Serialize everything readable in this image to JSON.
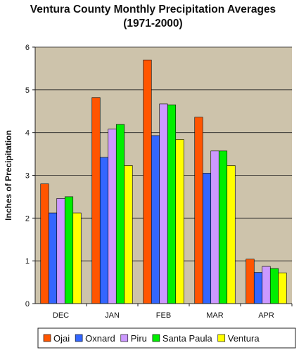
{
  "chart_data": {
    "type": "bar",
    "title": "Ventura County Monthly Precipitation Averages",
    "subtitle": "(1971-2000)",
    "xlabel": "",
    "ylabel": "Inches of Precipitation",
    "categories": [
      "DEC",
      "JAN",
      "FEB",
      "MAR",
      "APR"
    ],
    "ylim": [
      0,
      6
    ],
    "yticks": [
      "0",
      "1",
      "2",
      "3",
      "4",
      "5",
      "6"
    ],
    "grid": true,
    "legend_position": "bottom",
    "series": [
      {
        "name": "Ojai",
        "color": "#ff5500",
        "values": [
          2.8,
          4.82,
          5.7,
          4.36,
          1.04
        ]
      },
      {
        "name": "Oxnard",
        "color": "#3366ff",
        "values": [
          2.12,
          3.42,
          3.93,
          3.05,
          0.73
        ]
      },
      {
        "name": "Piru",
        "color": "#cc99ff",
        "values": [
          2.46,
          4.08,
          4.67,
          3.57,
          0.87
        ]
      },
      {
        "name": "Santa Paula",
        "color": "#00ee00",
        "values": [
          2.5,
          4.19,
          4.65,
          3.57,
          0.82
        ]
      },
      {
        "name": "Ventura",
        "color": "#ffff00",
        "values": [
          2.12,
          3.23,
          3.84,
          3.23,
          0.72
        ]
      }
    ],
    "plot_background": "#cdc3ab"
  }
}
